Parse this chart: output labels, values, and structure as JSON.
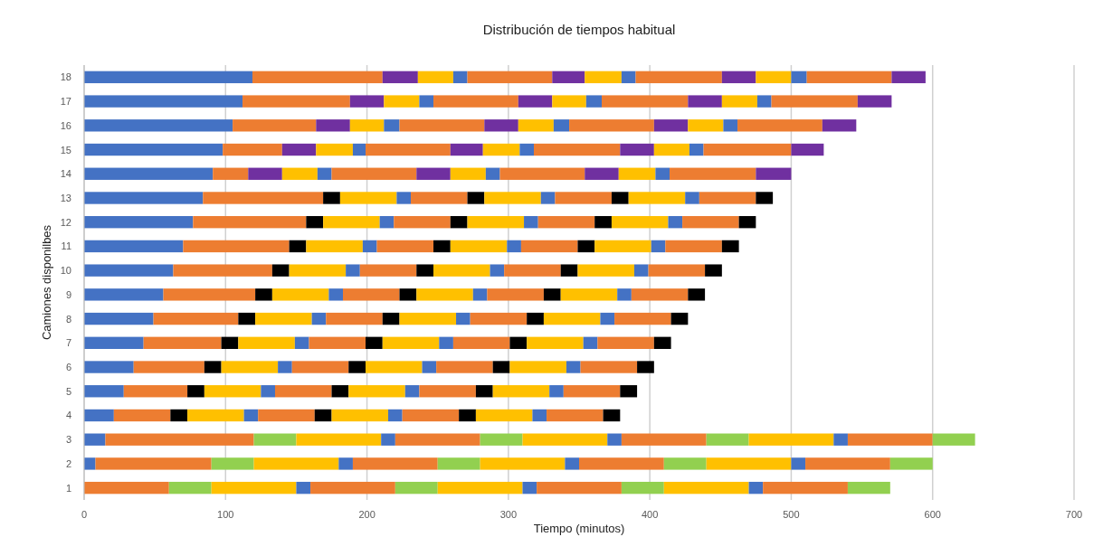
{
  "chart_data": {
    "type": "bar",
    "orientation": "horizontal",
    "stacked": true,
    "title": "Distribución de tiempos habitual",
    "xlabel": "Tiempo (minutos)",
    "ylabel": "Camiones disponilbes",
    "categories": [
      "18",
      "17",
      "16",
      "15",
      "14",
      "13",
      "12",
      "11",
      "10",
      "9",
      "8",
      "7",
      "6",
      "5",
      "4",
      "3",
      "2",
      "1"
    ],
    "xlim": [
      0,
      700
    ],
    "xticks": [
      0,
      100,
      200,
      300,
      400,
      500,
      600,
      700
    ],
    "grid": "x",
    "series": [
      {
        "color": "#4472c4",
        "values": [
          119,
          112,
          105,
          98,
          91,
          84,
          77,
          70,
          63,
          56,
          49,
          42,
          35,
          28,
          21,
          15,
          8,
          null
        ]
      },
      {
        "color": "#ed7d31",
        "values": [
          92,
          76,
          59,
          42,
          25,
          85,
          80,
          75,
          70,
          65,
          60,
          55,
          50,
          45,
          40,
          105,
          82,
          60
        ]
      },
      {
        "colors": [
          "#7030a0",
          "#7030a0",
          "#7030a0",
          "#7030a0",
          "#7030a0",
          "#000000",
          "#000000",
          "#000000",
          "#000000",
          "#000000",
          "#000000",
          "#000000",
          "#000000",
          "#000000",
          "#000000",
          "#92d050",
          "#92d050",
          "#92d050"
        ],
        "values": [
          25,
          24,
          24,
          24,
          24,
          12,
          12,
          12,
          12,
          12,
          12,
          12,
          12,
          12,
          12,
          30,
          30,
          30
        ]
      },
      {
        "color": "#ffc000",
        "values": [
          25,
          25,
          24,
          26,
          25,
          40,
          40,
          40,
          40,
          40,
          40,
          40,
          40,
          40,
          40,
          60,
          60,
          60
        ]
      },
      {
        "color": "#4472c4",
        "values": [
          10,
          10,
          11,
          9,
          10,
          10,
          10,
          10,
          10,
          10,
          10,
          10,
          10,
          10,
          10,
          10,
          10,
          10
        ]
      },
      {
        "color": "#ed7d31",
        "values": [
          60,
          60,
          60,
          60,
          60,
          40,
          40,
          40,
          40,
          40,
          40,
          40,
          40,
          40,
          40,
          60,
          60,
          60
        ]
      },
      {
        "colors": [
          "#7030a0",
          "#7030a0",
          "#7030a0",
          "#7030a0",
          "#7030a0",
          "#000000",
          "#000000",
          "#000000",
          "#000000",
          "#000000",
          "#000000",
          "#000000",
          "#000000",
          "#000000",
          "#000000",
          "#92d050",
          "#92d050",
          "#92d050"
        ],
        "values": [
          23,
          24,
          24,
          23,
          24,
          12,
          12,
          12,
          12,
          12,
          12,
          12,
          12,
          12,
          12,
          30,
          30,
          30
        ]
      },
      {
        "color": "#ffc000",
        "values": [
          26,
          24,
          25,
          26,
          25,
          40,
          40,
          40,
          40,
          40,
          40,
          40,
          40,
          40,
          40,
          60,
          60,
          60
        ]
      },
      {
        "color": "#4472c4",
        "values": [
          10,
          11,
          11,
          10,
          10,
          10,
          10,
          10,
          10,
          10,
          10,
          10,
          10,
          10,
          10,
          10,
          10,
          10
        ]
      },
      {
        "color": "#ed7d31",
        "values": [
          61,
          61,
          60,
          61,
          60,
          40,
          40,
          40,
          40,
          40,
          40,
          40,
          40,
          40,
          40,
          60,
          60,
          60
        ]
      },
      {
        "colors": [
          "#7030a0",
          "#7030a0",
          "#7030a0",
          "#7030a0",
          "#7030a0",
          "#000000",
          "#000000",
          "#000000",
          "#000000",
          "#000000",
          "#000000",
          "#000000",
          "#000000",
          "#000000",
          "#000000",
          "#92d050",
          "#92d050",
          "#92d050"
        ],
        "values": [
          24,
          24,
          24,
          24,
          24,
          12,
          12,
          12,
          12,
          12,
          12,
          12,
          12,
          12,
          12,
          30,
          30,
          30
        ]
      },
      {
        "color": "#ffc000",
        "values": [
          25,
          25,
          25,
          25,
          26,
          40,
          40,
          40,
          40,
          40,
          40,
          40,
          40,
          40,
          40,
          60,
          60,
          60
        ]
      },
      {
        "color": "#4472c4",
        "values": [
          11,
          10,
          10,
          10,
          10,
          10,
          10,
          10,
          10,
          10,
          10,
          10,
          10,
          10,
          10,
          10,
          10,
          10
        ]
      },
      {
        "color": "#ed7d31",
        "values": [
          60,
          61,
          60,
          62,
          61,
          40,
          40,
          40,
          40,
          40,
          40,
          40,
          40,
          40,
          40,
          60,
          60,
          60
        ]
      },
      {
        "colors": [
          "#7030a0",
          "#7030a0",
          "#7030a0",
          "#7030a0",
          "#7030a0",
          "#000000",
          "#000000",
          "#000000",
          "#000000",
          "#000000",
          "#000000",
          "#000000",
          "#000000",
          "#000000",
          "#000000",
          "#92d050",
          "#92d050",
          "#92d050"
        ],
        "values": [
          24,
          24,
          24,
          23,
          25,
          12,
          12,
          12,
          12,
          12,
          12,
          12,
          12,
          12,
          12,
          30,
          30,
          30
        ]
      }
    ]
  }
}
